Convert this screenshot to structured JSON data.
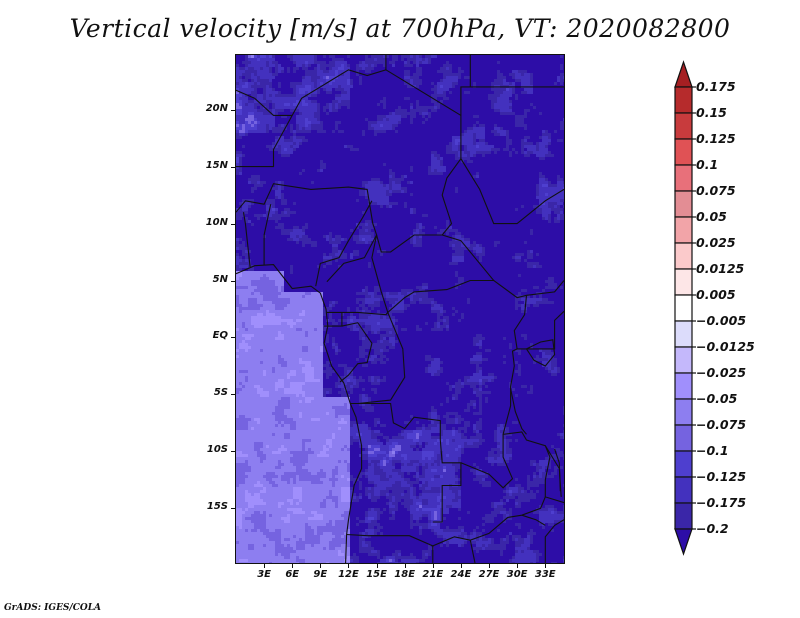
{
  "chart_data": {
    "type": "heatmap",
    "title": "Vertical velocity [m/s] at 700hPa, VT: 2020082800",
    "variable": "Vertical velocity",
    "units": "m/s",
    "level": "700hPa",
    "valid_time": "2020082800",
    "xlabel": "",
    "ylabel": "",
    "x_range_deg": [
      0,
      35
    ],
    "y_range_deg": [
      -19.8,
      24.8
    ],
    "x_ticks": [
      {
        "value": 3,
        "label": "3E"
      },
      {
        "value": 6,
        "label": "6E"
      },
      {
        "value": 9,
        "label": "9E"
      },
      {
        "value": 12,
        "label": "12E"
      },
      {
        "value": 15,
        "label": "15E"
      },
      {
        "value": 18,
        "label": "18E"
      },
      {
        "value": 21,
        "label": "21E"
      },
      {
        "value": 24,
        "label": "24E"
      },
      {
        "value": 27,
        "label": "27E"
      },
      {
        "value": 30,
        "label": "30E"
      },
      {
        "value": 33,
        "label": "33E"
      }
    ],
    "y_ticks": [
      {
        "value": 20,
        "label": "20N"
      },
      {
        "value": 15,
        "label": "15N"
      },
      {
        "value": 10,
        "label": "10N"
      },
      {
        "value": 5,
        "label": "5N"
      },
      {
        "value": 0,
        "label": "EQ"
      },
      {
        "value": -5,
        "label": "5S"
      },
      {
        "value": -10,
        "label": "10S"
      },
      {
        "value": -15,
        "label": "15S"
      }
    ],
    "colorbar": {
      "orientation": "vertical",
      "placement": "right",
      "extend": "both",
      "levels": [
        0.175,
        0.15,
        0.125,
        0.1,
        0.075,
        0.05,
        0.025,
        0.0125,
        0.005,
        -0.005,
        -0.0125,
        -0.025,
        -0.05,
        -0.075,
        -0.1,
        -0.125,
        -0.175,
        -0.2
      ],
      "labels": [
        "0.175",
        "0.15",
        "0.125",
        "0.1",
        "0.075",
        "0.05",
        "0.025",
        "0.0125",
        "0.005",
        "−0.005",
        "−0.0125",
        "−0.025",
        "−0.05",
        "−0.075",
        "−0.1",
        "−0.125",
        "−0.175",
        "−0.2"
      ],
      "colors_top_to_bottom": [
        "#a51f22",
        "#b62b2c",
        "#c83b3d",
        "#e05255",
        "#e8707a",
        "#e38d94",
        "#f2a4a8",
        "#fbcacb",
        "#fde6e7",
        "#ffffff",
        "#dcdcfb",
        "#c4b8fb",
        "#a08ffc",
        "#8d7ef0",
        "#7563e0",
        "#4e3fcf",
        "#4331be",
        "#3a26a8",
        "#2d0da7"
      ]
    },
    "description": "Gridded vertical velocity field over Central Africa (0E-35E, ~20S-25N) with country borders overlaid; mixed positive (red) and negative (blue) small-scale structure."
  },
  "footer": {
    "credit": "GrADS: IGES/COLA"
  }
}
